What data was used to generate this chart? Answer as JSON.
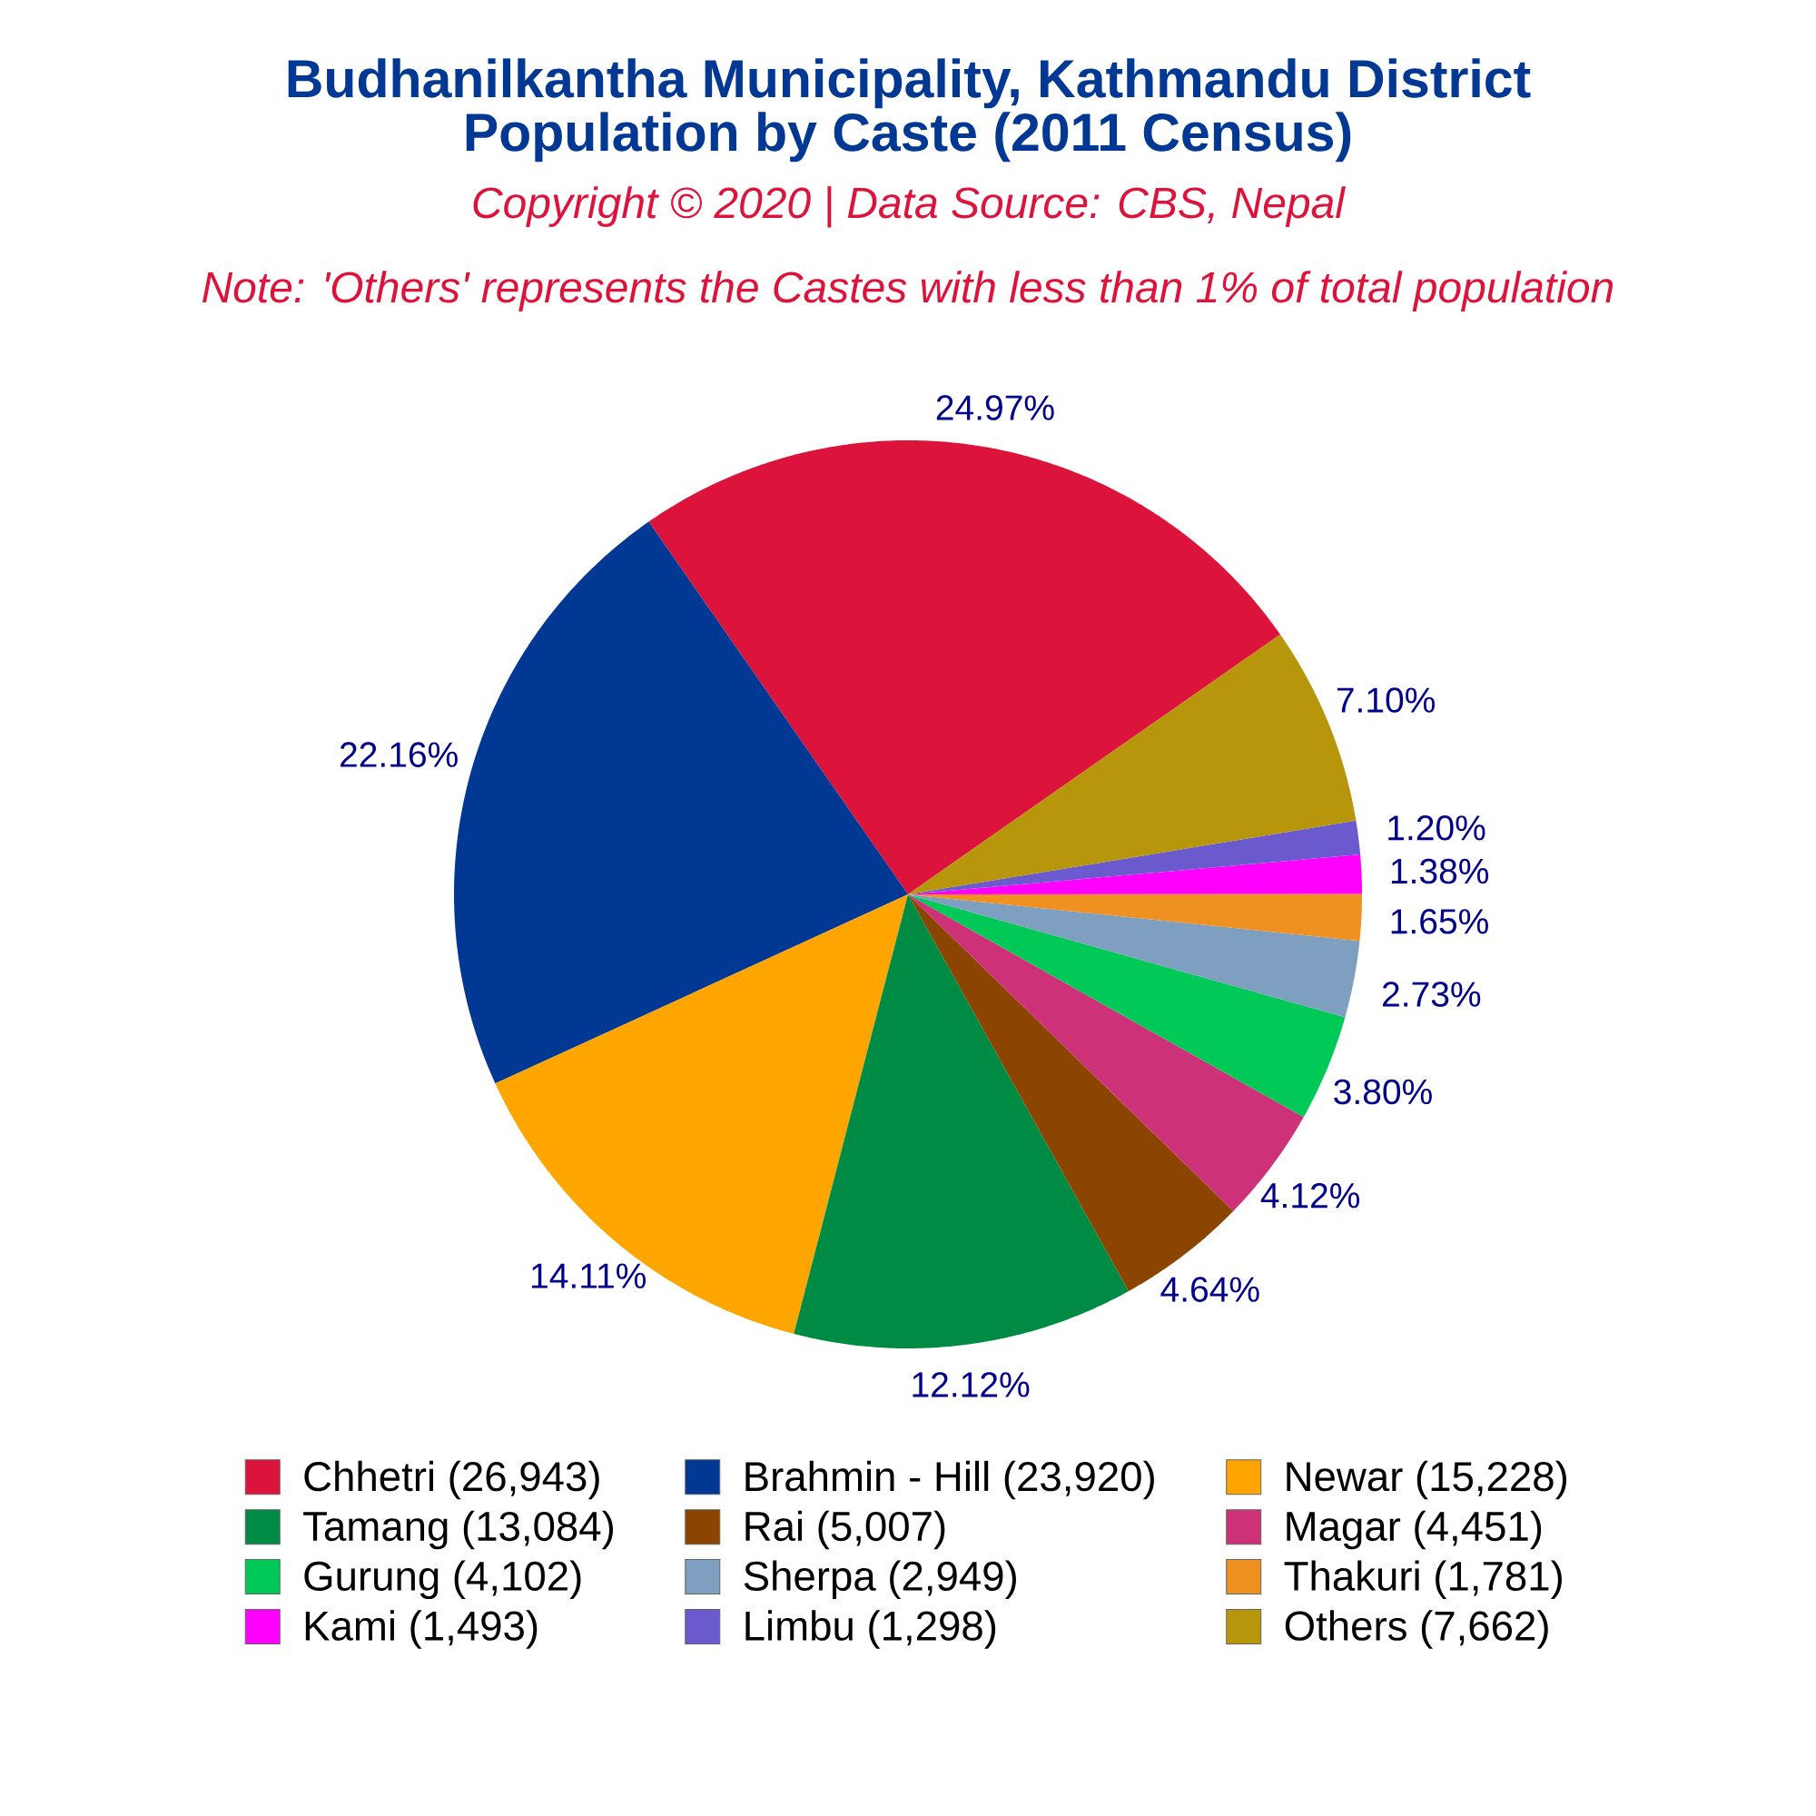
{
  "chart_data": {
    "type": "pie",
    "title": "Budhanilkantha Municipality, Kathmandu District Population by Caste (2011 Census)",
    "subtitle": "Copyright © 2020 | Data Source: CBS, Nepal",
    "annotations": [
      "Note: 'Others' represents the Castes with less than 1% of total population"
    ],
    "categories": [
      "Chhetri (26,943)",
      "Brahmin - Hill (23,920)",
      "Newar (15,228)",
      "Tamang (13,084)",
      "Rai (5,007)",
      "Magar (4,451)",
      "Gurung (4,102)",
      "Sherpa (2,949)",
      "Thakuri (1,781)",
      "Kami (1,493)",
      "Limbu (1,298)",
      "Others (7,662)"
    ],
    "values": [
      24.97,
      22.16,
      14.11,
      12.12,
      4.64,
      4.12,
      3.8,
      2.73,
      1.65,
      1.38,
      1.2,
      7.1
    ],
    "colors": [
      "#dc143c",
      "#003893",
      "#ffa500",
      "#008b45",
      "#8b4500",
      "#cd3278",
      "#00c957",
      "#7f9fc0",
      "#ee9121",
      "#ff00ff",
      "#6a5acd",
      "#b8960b"
    ],
    "value_labels": [
      "24.97%",
      "22.16%",
      "14.11%",
      "12.12%",
      "4.64%",
      "4.12%",
      "3.80%",
      "2.73%",
      "1.65%",
      "1.38%",
      "1.20%",
      "7.10%"
    ],
    "legend": "bottom"
  }
}
